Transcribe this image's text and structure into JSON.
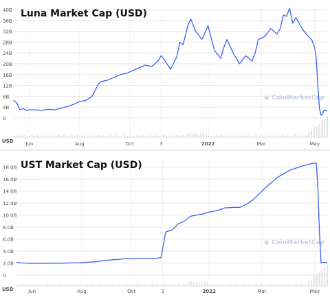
{
  "charts_meta": {
    "watermark": "CoinMarketCap",
    "accent": "#3861fb",
    "grid_color": "#e6e6e6"
  },
  "chart_data": [
    {
      "type": "line",
      "title": "Luna Market Cap (USD)",
      "currency_label": "USD",
      "ylim": [
        0,
        40
      ],
      "yticks": [
        {
          "v": 0,
          "label": "0"
        },
        {
          "v": 4,
          "label": "4B"
        },
        {
          "v": 8,
          "label": "8B"
        },
        {
          "v": 12,
          "label": "12B"
        },
        {
          "v": 16,
          "label": "16B"
        },
        {
          "v": 20,
          "label": "20B"
        },
        {
          "v": 24,
          "label": "24B"
        },
        {
          "v": 28,
          "label": "28B"
        },
        {
          "v": 32,
          "label": "32B"
        },
        {
          "v": 36,
          "label": "36B"
        },
        {
          "v": 40,
          "label": "40B"
        }
      ],
      "xticks": [
        {
          "v": 0.05,
          "label": "Jun",
          "bold": false
        },
        {
          "v": 0.21,
          "label": "Aug",
          "bold": false
        },
        {
          "v": 0.37,
          "label": "Oct",
          "bold": false
        },
        {
          "v": 0.47,
          "label": "3",
          "bold": false
        },
        {
          "v": 0.62,
          "label": "2022",
          "bold": true
        },
        {
          "v": 0.79,
          "label": "Mar",
          "bold": false
        },
        {
          "v": 0.96,
          "label": "May",
          "bold": false
        }
      ],
      "series": [
        {
          "x": [
            0,
            0.01,
            0.02,
            0.03,
            0.04,
            0.05,
            0.07,
            0.09,
            0.11,
            0.13,
            0.15,
            0.17,
            0.19,
            0.21,
            0.23,
            0.25,
            0.27,
            0.28,
            0.3,
            0.32,
            0.34,
            0.36,
            0.38,
            0.4,
            0.42,
            0.44,
            0.46,
            0.47,
            0.48,
            0.5,
            0.52,
            0.53,
            0.54,
            0.555,
            0.565,
            0.58,
            0.6,
            0.62,
            0.64,
            0.66,
            0.67,
            0.68,
            0.7,
            0.72,
            0.74,
            0.76,
            0.77,
            0.78,
            0.8,
            0.82,
            0.84,
            0.85,
            0.86,
            0.87,
            0.88,
            0.89,
            0.9,
            0.92,
            0.94,
            0.95,
            0.96,
            0.965,
            0.97,
            0.975,
            0.98,
            0.985,
            0.99,
            1.0
          ],
          "values": [
            6.5,
            5.5,
            3.0,
            3.5,
            2.8,
            3.0,
            3.0,
            2.8,
            3.2,
            3.0,
            3.6,
            4.2,
            5.0,
            6.0,
            6.5,
            8.0,
            12.5,
            13.5,
            14.0,
            15.0,
            16.0,
            16.5,
            17.5,
            18.5,
            19.5,
            19.0,
            21.0,
            23.0,
            21.5,
            18.0,
            22.5,
            28.0,
            27.0,
            34.0,
            36.5,
            32.0,
            29.0,
            34.0,
            25.0,
            22.0,
            26.0,
            29.0,
            24.0,
            20.0,
            23.0,
            21.0,
            24.0,
            29.0,
            30.0,
            33.0,
            31.0,
            33.0,
            38.0,
            37.5,
            40.5,
            35.0,
            37.0,
            33.0,
            30.0,
            29.0,
            26.0,
            22.0,
            12.0,
            3.5,
            1.0,
            1.5,
            3.0,
            2.5
          ]
        }
      ]
    },
    {
      "type": "line",
      "title": "UST Market Cap (USD)",
      "currency_label": "USD",
      "ylim": [
        0,
        19
      ],
      "yticks": [
        {
          "v": 0,
          "label": "0"
        },
        {
          "v": 2,
          "label": "2.0B"
        },
        {
          "v": 4,
          "label": "4.0B"
        },
        {
          "v": 6,
          "label": "6.0B"
        },
        {
          "v": 8,
          "label": "8.0B"
        },
        {
          "v": 10,
          "label": "10.0B"
        },
        {
          "v": 12,
          "label": "12.0B"
        },
        {
          "v": 14,
          "label": "14.0B"
        },
        {
          "v": 16,
          "label": "16.0B"
        },
        {
          "v": 18,
          "label": "18.0B"
        }
      ],
      "xticks": [
        {
          "v": 0.05,
          "label": "Jun",
          "bold": false
        },
        {
          "v": 0.21,
          "label": "Aug",
          "bold": false
        },
        {
          "v": 0.37,
          "label": "Oct",
          "bold": false
        },
        {
          "v": 0.47,
          "label": "3",
          "bold": false
        },
        {
          "v": 0.62,
          "label": "2022",
          "bold": true
        },
        {
          "v": 0.79,
          "label": "Mar",
          "bold": false
        },
        {
          "v": 0.96,
          "label": "May",
          "bold": false
        }
      ],
      "series": [
        {
          "x": [
            0,
            0.02,
            0.05,
            0.1,
            0.15,
            0.2,
            0.25,
            0.3,
            0.35,
            0.4,
            0.45,
            0.465,
            0.48,
            0.5,
            0.52,
            0.54,
            0.56,
            0.58,
            0.6,
            0.62,
            0.65,
            0.67,
            0.7,
            0.72,
            0.74,
            0.76,
            0.8,
            0.84,
            0.88,
            0.92,
            0.95,
            0.96,
            0.965,
            0.97,
            0.975,
            0.98,
            0.99,
            1.0
          ],
          "values": [
            2.1,
            2.0,
            1.95,
            1.95,
            1.98,
            2.05,
            2.2,
            2.5,
            2.7,
            2.75,
            2.8,
            2.9,
            7.2,
            7.5,
            8.5,
            9.0,
            9.8,
            10.0,
            10.2,
            10.5,
            10.8,
            11.2,
            11.3,
            11.3,
            11.8,
            12.5,
            14.5,
            16.3,
            17.5,
            18.2,
            18.6,
            18.7,
            18.6,
            14.5,
            7.0,
            2.0,
            2.1,
            2.1
          ]
        }
      ]
    }
  ]
}
